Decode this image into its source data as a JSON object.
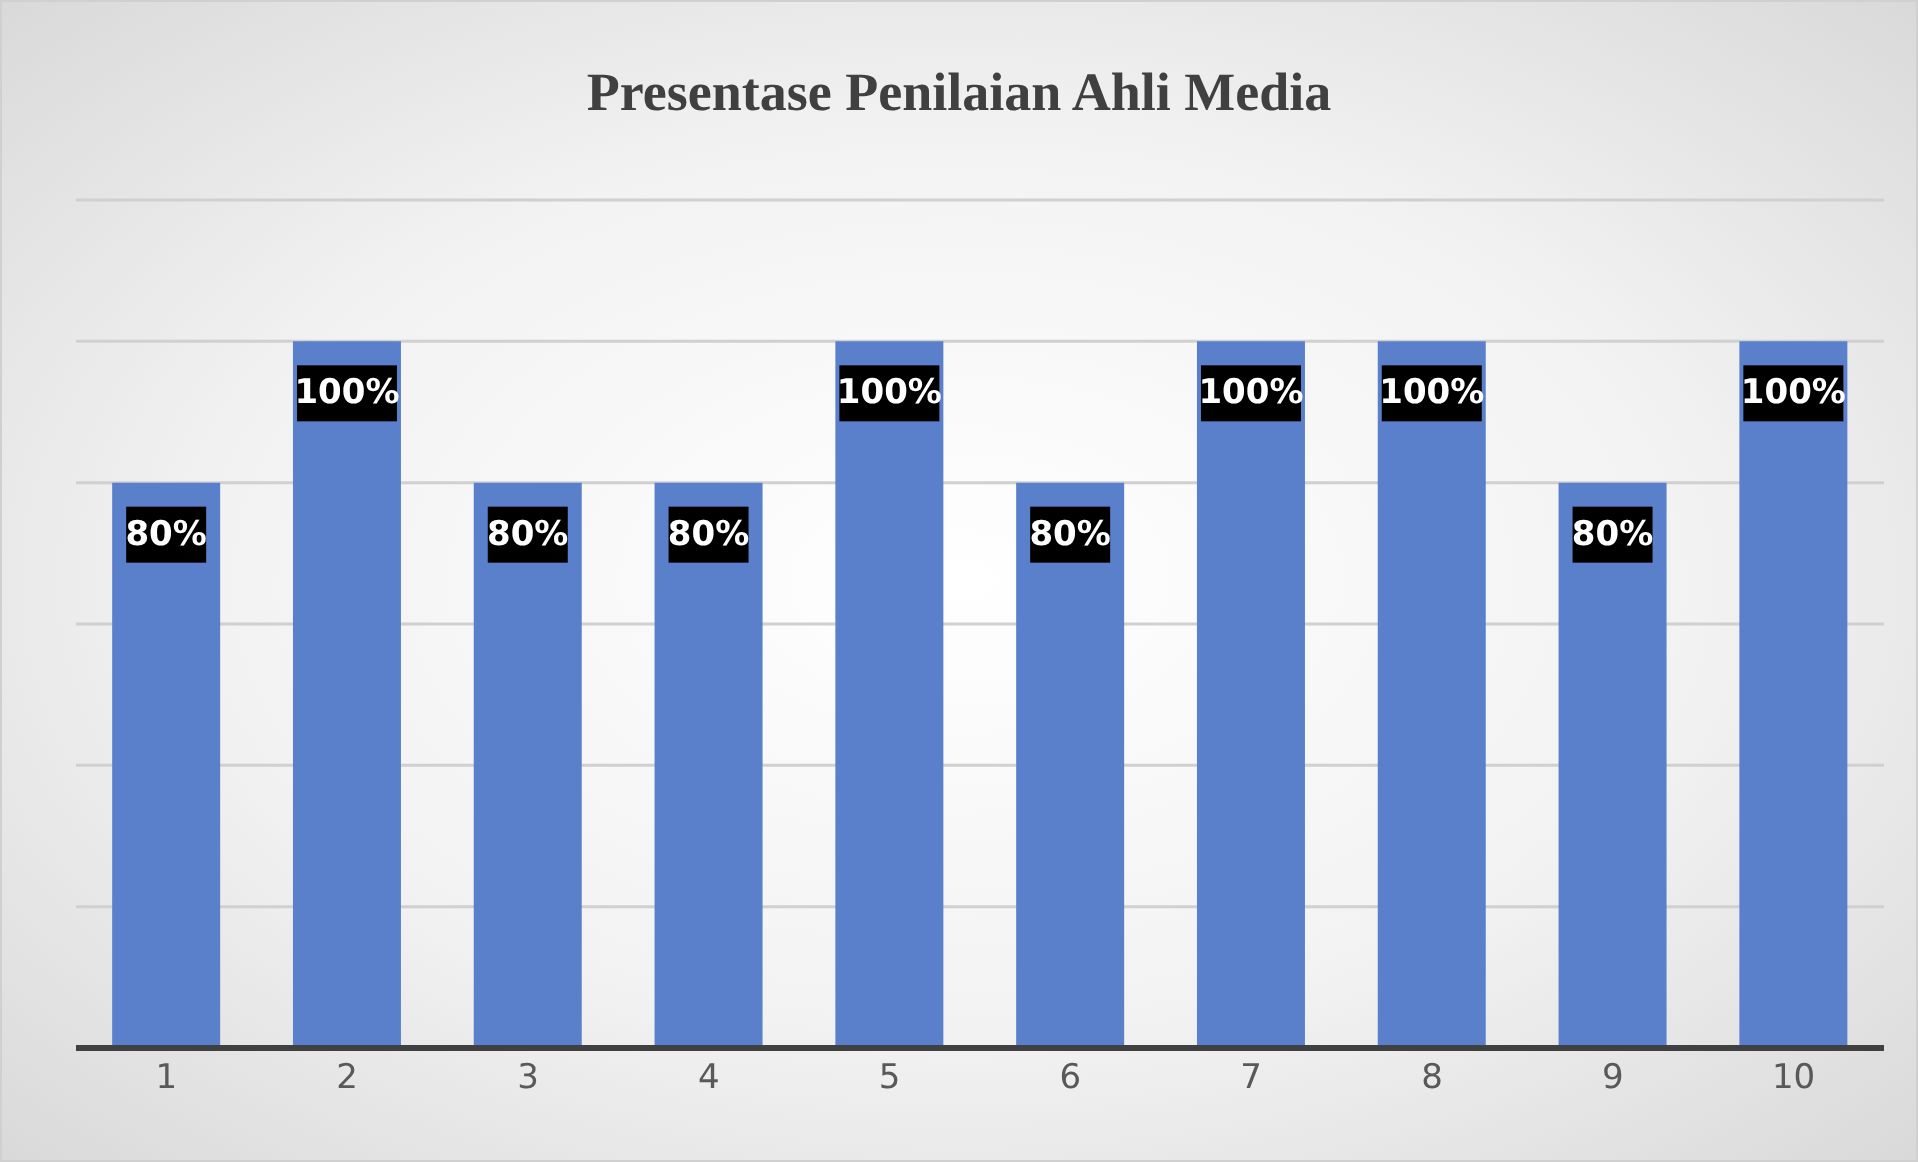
{
  "chart_data": {
    "type": "bar",
    "title": "Presentase Penilaian Ahli Media",
    "categories": [
      "1",
      "2",
      "3",
      "4",
      "5",
      "6",
      "7",
      "8",
      "9",
      "10"
    ],
    "values": [
      80,
      100,
      80,
      80,
      100,
      80,
      100,
      100,
      80,
      100
    ],
    "value_labels": [
      "80%",
      "100%",
      "80%",
      "80%",
      "100%",
      "80%",
      "100%",
      "100%",
      "80%",
      "100%"
    ],
    "color": "#5b80cb",
    "ylim": [
      0,
      120
    ],
    "yticks": [
      {
        "value": 0,
        "label": null
      },
      {
        "value": 20,
        "label": null
      },
      {
        "value": 40,
        "label": null
      },
      {
        "value": 60,
        "label": null
      },
      {
        "value": 80,
        "label": null
      },
      {
        "value": 100,
        "label": null
      },
      {
        "value": 120,
        "label": null
      }
    ],
    "grid": "y",
    "tick_labels": "x",
    "legend": false
  }
}
